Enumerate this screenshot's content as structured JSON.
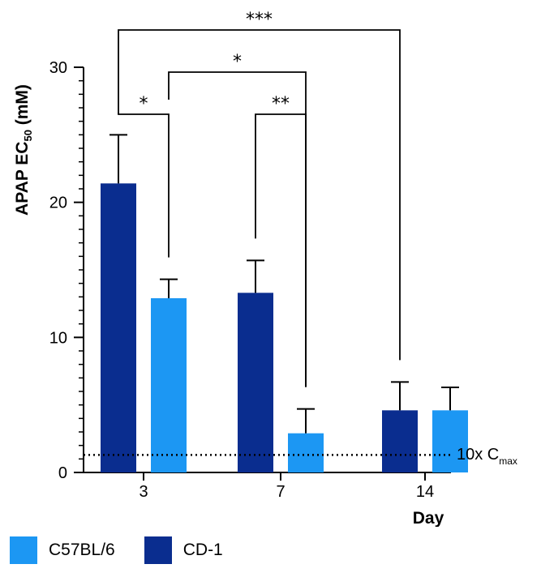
{
  "chart_data": {
    "type": "bar",
    "categories": [
      "3",
      "7",
      "14"
    ],
    "xlabel": "Day",
    "ylabel_main": "APAP EC",
    "ylabel_sub": "50",
    "ylabel_unit": " (mM)",
    "ylim": [
      0,
      30
    ],
    "yticks": [
      "0",
      "10",
      "20",
      "30"
    ],
    "series": [
      {
        "name": "CD-1",
        "color": "#0A2D8F",
        "values": [
          21.4,
          13.3,
          4.6
        ],
        "errors": [
          3.6,
          2.4,
          2.1
        ]
      },
      {
        "name": "C57BL/6",
        "color": "#1C97F3",
        "values": [
          12.9,
          2.9,
          4.6
        ],
        "errors": [
          1.4,
          1.8,
          1.7
        ]
      }
    ],
    "reference_line": {
      "value": 1.3,
      "label_main": "10x C",
      "label_sub": "max"
    },
    "significance": [
      {
        "label": "*",
        "from": "CD-1 day 3",
        "to": "C57BL/6 day 3"
      },
      {
        "label": "*",
        "from": "C57BL/6 day 3",
        "to": "C57BL/6 day 7"
      },
      {
        "label": "**",
        "from": "CD-1 day 7",
        "to": "C57BL/6 day 7"
      },
      {
        "label": "***",
        "from": "CD-1 day 3",
        "to": "CD-1 day 14"
      }
    ],
    "legend_order": [
      "C57BL/6",
      "CD-1"
    ]
  },
  "legend": [
    {
      "label": "C57BL/6",
      "color": "#1C97F3"
    },
    {
      "label": "CD-1",
      "color": "#0A2D8F"
    }
  ]
}
